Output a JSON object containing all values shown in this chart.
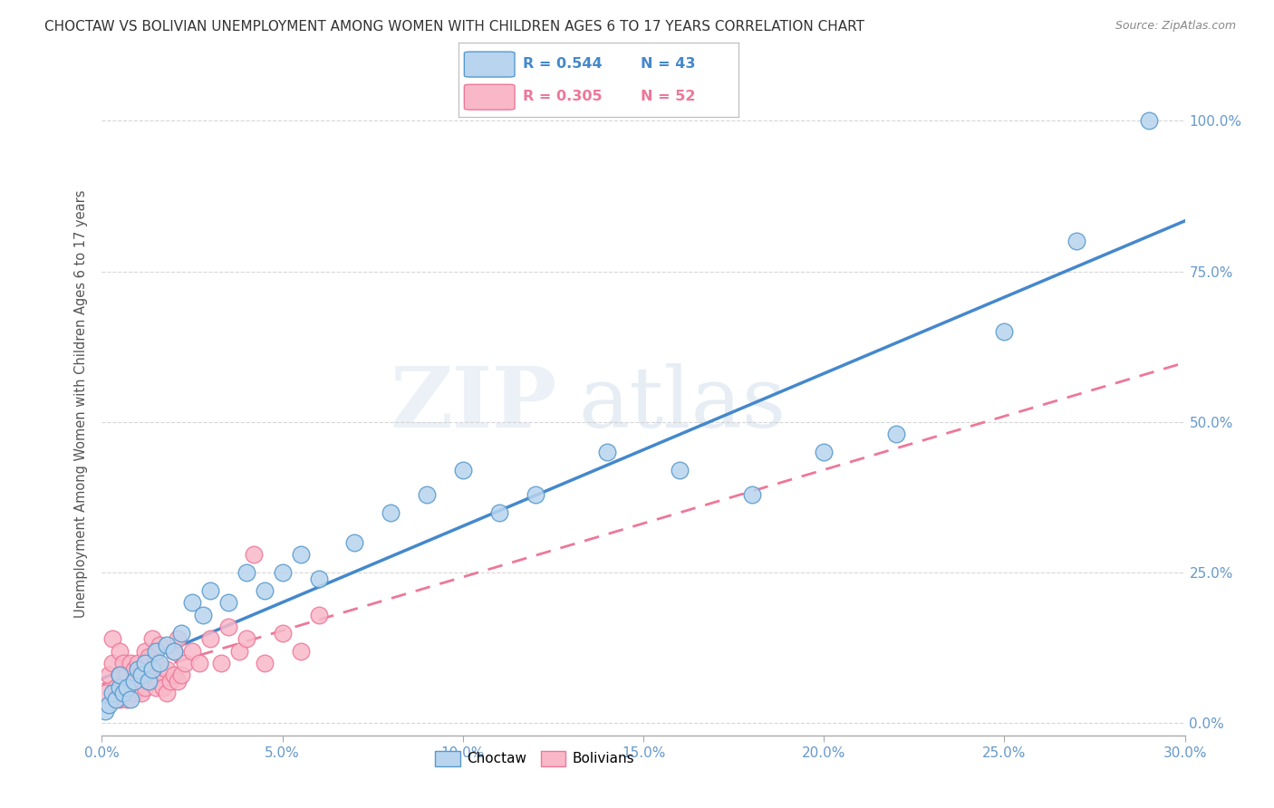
{
  "title": "CHOCTAW VS BOLIVIAN UNEMPLOYMENT AMONG WOMEN WITH CHILDREN AGES 6 TO 17 YEARS CORRELATION CHART",
  "source": "Source: ZipAtlas.com",
  "ylabel": "Unemployment Among Women with Children Ages 6 to 17 years",
  "xlim": [
    0.0,
    0.3
  ],
  "ylim": [
    -0.02,
    1.08
  ],
  "legend1_r": "R = 0.544",
  "legend1_n": "N = 43",
  "legend2_r": "R = 0.305",
  "legend2_n": "N = 52",
  "watermark_zip": "ZIP",
  "watermark_atlas": "atlas",
  "choctaw_fill": "#b8d4ee",
  "choctaw_edge": "#5599cc",
  "bolivian_fill": "#f8b8c8",
  "bolivian_edge": "#ee7799",
  "choctaw_line_color": "#4488cc",
  "bolivian_line_color": "#ee7799",
  "background_color": "#ffffff",
  "grid_color": "#cccccc",
  "tick_color": "#6699cc",
  "choctaw_x": [
    0.001,
    0.002,
    0.003,
    0.004,
    0.005,
    0.005,
    0.006,
    0.007,
    0.008,
    0.009,
    0.01,
    0.011,
    0.012,
    0.013,
    0.014,
    0.015,
    0.016,
    0.018,
    0.02,
    0.022,
    0.025,
    0.028,
    0.03,
    0.035,
    0.04,
    0.045,
    0.05,
    0.055,
    0.06,
    0.07,
    0.08,
    0.09,
    0.1,
    0.11,
    0.12,
    0.14,
    0.16,
    0.18,
    0.2,
    0.22,
    0.25,
    0.27,
    0.29
  ],
  "choctaw_y": [
    0.02,
    0.03,
    0.05,
    0.04,
    0.06,
    0.08,
    0.05,
    0.06,
    0.04,
    0.07,
    0.09,
    0.08,
    0.1,
    0.07,
    0.09,
    0.12,
    0.1,
    0.13,
    0.12,
    0.15,
    0.2,
    0.18,
    0.22,
    0.2,
    0.25,
    0.22,
    0.25,
    0.28,
    0.24,
    0.3,
    0.35,
    0.38,
    0.42,
    0.35,
    0.38,
    0.45,
    0.42,
    0.38,
    0.45,
    0.48,
    0.65,
    0.8,
    1.0
  ],
  "bolivian_x": [
    0.001,
    0.002,
    0.003,
    0.003,
    0.004,
    0.005,
    0.005,
    0.005,
    0.006,
    0.006,
    0.007,
    0.007,
    0.008,
    0.008,
    0.009,
    0.009,
    0.01,
    0.01,
    0.011,
    0.011,
    0.012,
    0.012,
    0.013,
    0.013,
    0.014,
    0.014,
    0.015,
    0.015,
    0.016,
    0.016,
    0.017,
    0.018,
    0.018,
    0.019,
    0.02,
    0.02,
    0.021,
    0.021,
    0.022,
    0.023,
    0.025,
    0.027,
    0.03,
    0.033,
    0.035,
    0.038,
    0.04,
    0.042,
    0.045,
    0.05,
    0.055,
    0.06
  ],
  "bolivian_y": [
    0.05,
    0.08,
    0.1,
    0.14,
    0.06,
    0.04,
    0.08,
    0.12,
    0.06,
    0.1,
    0.04,
    0.08,
    0.06,
    0.1,
    0.05,
    0.09,
    0.06,
    0.1,
    0.05,
    0.09,
    0.06,
    0.12,
    0.07,
    0.11,
    0.08,
    0.14,
    0.06,
    0.1,
    0.07,
    0.13,
    0.06,
    0.05,
    0.09,
    0.07,
    0.08,
    0.12,
    0.07,
    0.14,
    0.08,
    0.1,
    0.12,
    0.1,
    0.14,
    0.1,
    0.16,
    0.12,
    0.14,
    0.28,
    0.1,
    0.15,
    0.12,
    0.18
  ]
}
